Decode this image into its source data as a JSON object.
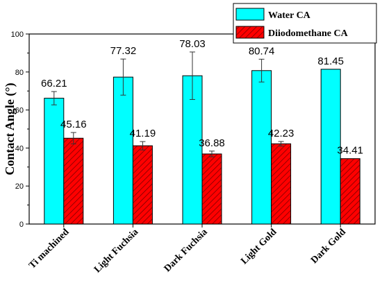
{
  "chart_data": {
    "type": "bar",
    "title": "",
    "xlabel": "",
    "ylabel": "Contact Angle (°)",
    "ylim": [
      0,
      100
    ],
    "yticks": [
      0,
      20,
      40,
      60,
      80,
      100
    ],
    "grid": false,
    "legend_position": "top-right",
    "categories": [
      "Ti machined",
      "Light Fuchsia",
      "Dark Fuchsia",
      "Light Gold",
      "Dark Gold"
    ],
    "series": [
      {
        "name": "Water CA",
        "color": "#00ffff",
        "pattern": "solid",
        "values": [
          66.21,
          77.32,
          78.03,
          80.74,
          81.45
        ],
        "value_labels": [
          "66.21",
          "77.32",
          "78.03",
          "80.74",
          "81.45"
        ],
        "error": [
          3.5,
          9.5,
          12.5,
          6.0,
          0
        ]
      },
      {
        "name": "Diiodomethane CA",
        "color": "#ff0000",
        "pattern": "diagonal-hatch",
        "values": [
          45.16,
          41.19,
          36.88,
          42.23,
          34.41
        ],
        "value_labels": [
          "45.16",
          "41.19",
          "36.88",
          "42.23",
          "34.41"
        ],
        "error": [
          3.0,
          2.2,
          1.5,
          1.2,
          0
        ]
      }
    ]
  }
}
